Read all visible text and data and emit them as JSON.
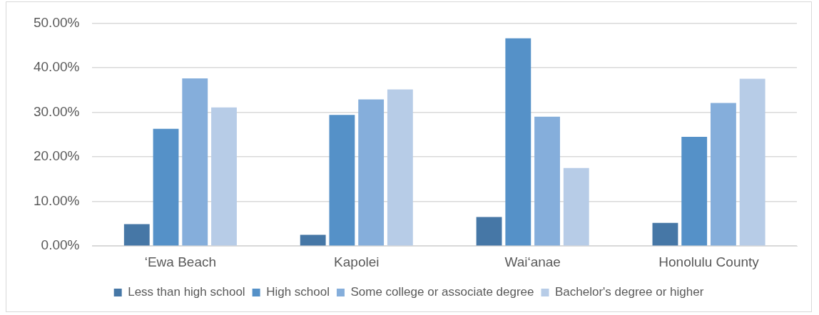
{
  "chart_data": {
    "type": "bar",
    "categories": [
      "‘Ewa Beach",
      "Kapolei",
      "Wai‘anae",
      "Honolulu County"
    ],
    "series": [
      {
        "name": "Less than high school",
        "color": "#4677a6",
        "values": [
          4.9,
          2.5,
          6.5,
          5.2
        ]
      },
      {
        "name": "High school",
        "color": "#5591c8",
        "values": [
          26.3,
          29.4,
          46.6,
          24.5
        ]
      },
      {
        "name": "Some college or associate degree",
        "color": "#85aedb",
        "values": [
          37.6,
          32.9,
          29.0,
          32.1
        ]
      },
      {
        "name": "Bachelor's degree or higher",
        "color": "#b7cce7",
        "values": [
          31.1,
          35.1,
          17.5,
          37.5
        ]
      }
    ],
    "ylim": [
      0,
      50
    ],
    "yticks": [
      {
        "value": 0,
        "label": "0.00%"
      },
      {
        "value": 10,
        "label": "10.00%"
      },
      {
        "value": 20,
        "label": "20.00%"
      },
      {
        "value": 30,
        "label": "30.00%"
      },
      {
        "value": 40,
        "label": "40.00%"
      },
      {
        "value": 50,
        "label": "50.00%"
      }
    ],
    "grid": "y",
    "legend": "bottom"
  }
}
